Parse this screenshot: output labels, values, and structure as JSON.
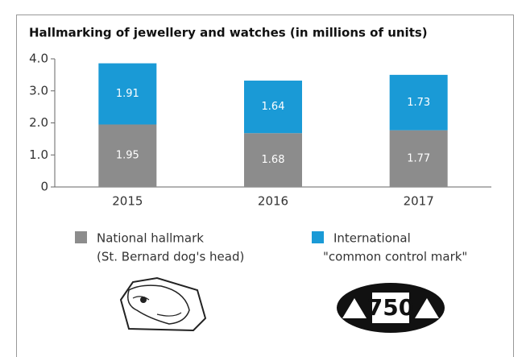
{
  "chart_data": {
    "type": "stacked-bar",
    "title": "Hallmarking of jewellery and watches (in millions of units)",
    "categories": [
      "2015",
      "2016",
      "2017"
    ],
    "series": [
      {
        "name": "National hallmark",
        "description": "(St. Bernard dog's head)",
        "color": "#8c8c8c",
        "values": [
          1.95,
          1.68,
          1.77
        ]
      },
      {
        "name": "International",
        "description": "\"common control mark\"",
        "color": "#1a9ad6",
        "values": [
          1.91,
          1.64,
          1.73
        ]
      }
    ],
    "ylim": [
      0,
      4
    ],
    "yticks": [
      0,
      {
        "value": 1,
        "label": "1.0"
      },
      {
        "value": 2,
        "label": "2.0"
      },
      {
        "value": 3,
        "label": "3.0"
      },
      {
        "value": 4,
        "label": "4.0"
      }
    ],
    "logo_text": "750"
  }
}
